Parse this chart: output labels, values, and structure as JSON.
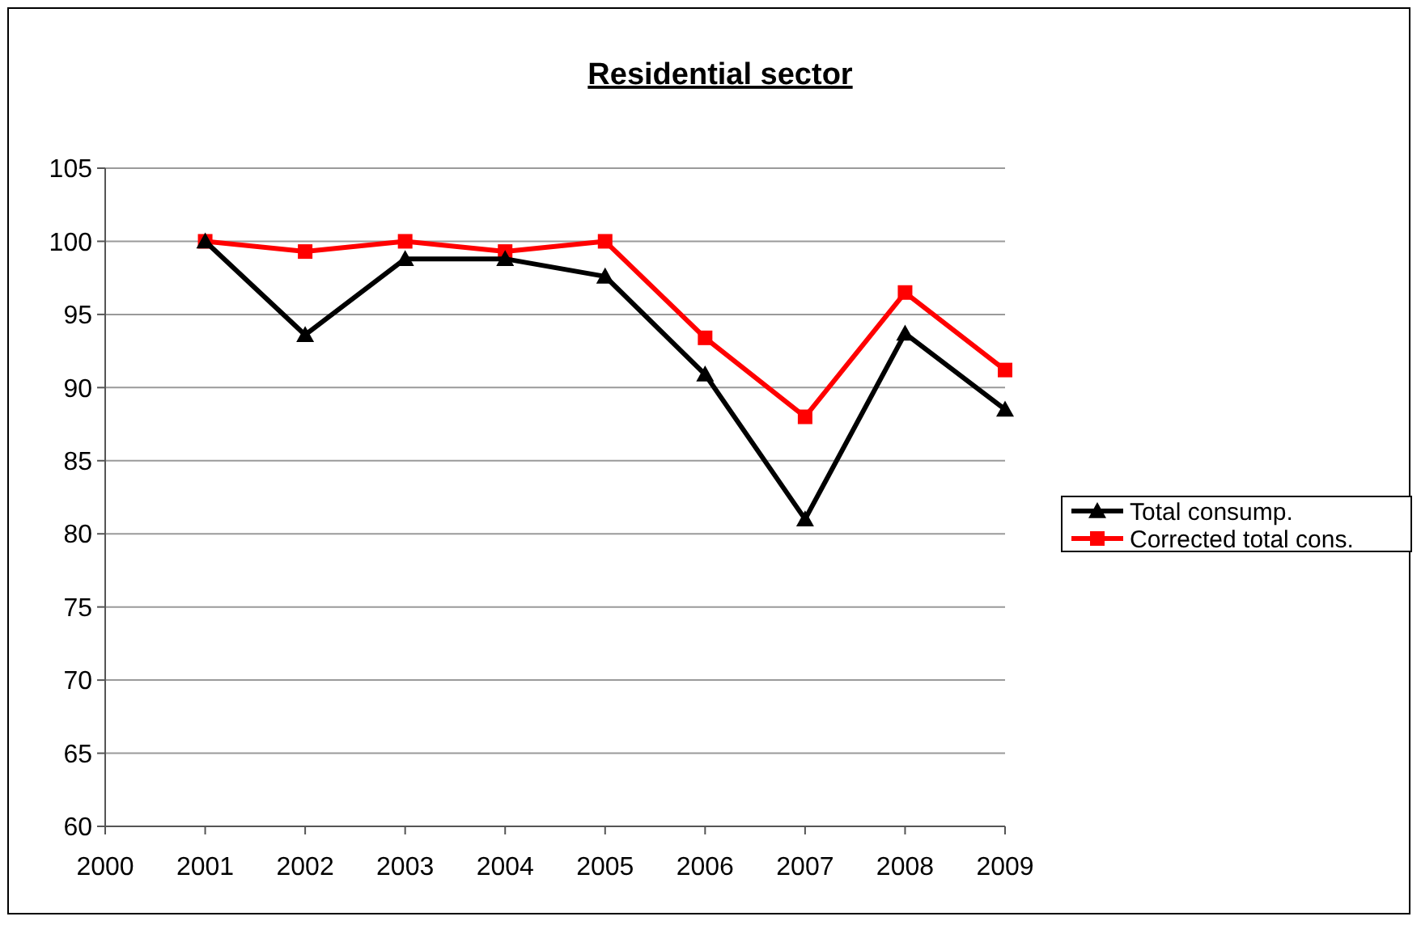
{
  "chart_data": {
    "type": "line",
    "title": "Residential sector",
    "x": [
      2001,
      2002,
      2003,
      2004,
      2005,
      2006,
      2007,
      2008,
      2009
    ],
    "series": [
      {
        "name": "Total consump.",
        "color": "#000000",
        "marker": "triangle",
        "values": [
          100,
          93.6,
          98.8,
          98.8,
          97.6,
          90.9,
          81,
          93.7,
          88.5
        ]
      },
      {
        "name": "Corrected total cons.",
        "color": "#ff0000",
        "marker": "square",
        "values": [
          100,
          99.3,
          100,
          99.3,
          100,
          93.4,
          88,
          96.5,
          91.2
        ]
      }
    ],
    "xlim": [
      2000,
      2009
    ],
    "xticks": [
      2000,
      2001,
      2002,
      2003,
      2004,
      2005,
      2006,
      2007,
      2008,
      2009
    ],
    "ylim": [
      60,
      105
    ],
    "yticks": [
      60,
      65,
      70,
      75,
      80,
      85,
      90,
      95,
      100,
      105
    ],
    "grid": "y",
    "legend": "right",
    "line_style": "solid"
  }
}
